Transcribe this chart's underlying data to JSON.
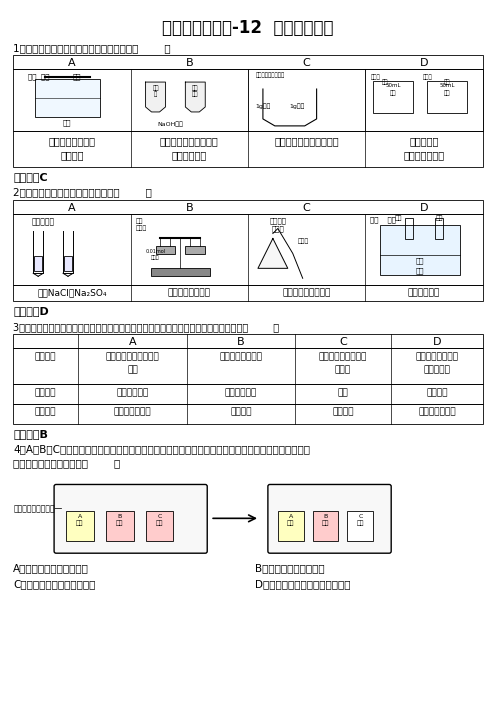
{
  "title": "天原杯试题汇编-12  化学实验探究",
  "bg_color": "#ffffff",
  "q1": {
    "text": "1、实验方案的设计不能达到实验目的的是（        ）",
    "answer": "【答案】C",
    "headers": [
      "A",
      "B",
      "C",
      "D"
    ],
    "cell_texts": [
      [
        "验证白磷的着火点",
        "比红磷低"
      ],
      [
        "验证二氧化碳能与氢氧",
        "化钠溶液反应"
      ],
      [
        "比较铁、锌的活动性顺序"
      ],
      [
        "探究温度对",
        "分子运动的影响"
      ]
    ]
  },
  "q2": {
    "text": "2、下列实验操作能够达到目的的是（        ）",
    "answer": "【答案】D",
    "headers": [
      "A",
      "B",
      "C",
      "D"
    ],
    "cell_texts": [
      [
        "鉴别NaCl、Na₂SO₄"
      ],
      [
        "验证质量守恒定律"
      ],
      [
        "探究大理石分解产物"
      ],
      [
        "探究燃烧条件"
      ]
    ]
  },
  "q3": {
    "text": "3、某同学对下列四个实验都设计了两种方案，其中第一方案比第二方案更方便合理的是（        ）",
    "answer": "【答案】B",
    "headers": [
      "",
      "A",
      "B",
      "C",
      "D"
    ],
    "rows": [
      [
        "实验要求",
        "除去二氧化碳中少量的\n氧气",
        "清洗金属表面油污",
        "检验石灰中是否含有\n石灰石",
        "区分黄铜（铜锌合\n金）和黄金"
      ],
      [
        "第一方案",
        "通过灼热铁粉",
        "用洗洁精洗涤",
        "加热",
        "观察颜色"
      ],
      [
        "第二方案",
        "通过灼热铜丝网",
        "用水洗涤",
        "滴加稀酸",
        "加盐酸，看气泡"
      ]
    ]
  },
  "q4": {
    "text1": "4、A、B、C三只小烧杯内分别依次盛有一定体积的浓氨水、酚酞溶液、酚酞溶液，按下图所示进行探究",
    "text2": "活动，不能得到的结论是（        ）",
    "diagram_note": "干燥的空气从大烧杯—",
    "choices": [
      "A．氨水能使酚酞溶液变红",
      "B．碱能使酚酞溶液变红",
      "C．空气不能使酚酞溶液变红",
      "D．液氨水易发挥，氨气易溶于水"
    ]
  }
}
